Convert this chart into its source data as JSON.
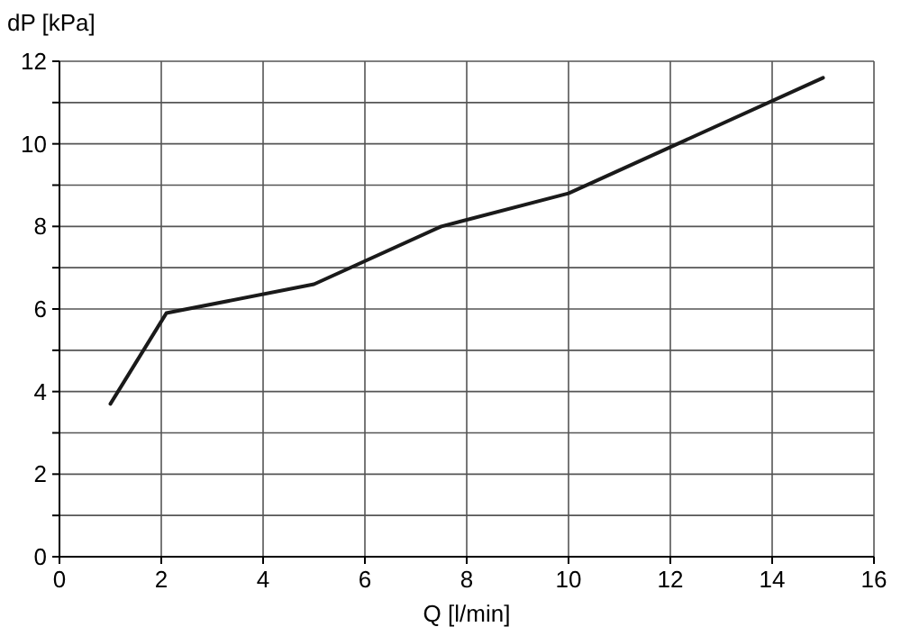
{
  "chart_data": {
    "type": "line",
    "xlabel": "Q [l/min]",
    "ylabel": "dP [kPa]",
    "x": [
      1,
      2.1,
      5,
      7.5,
      10,
      15
    ],
    "series": [
      {
        "color": "#1a1a1a",
        "values": [
          3.7,
          5.9,
          6.6,
          8.0,
          8.8,
          11.6
        ]
      }
    ],
    "xlim": [
      0,
      16
    ],
    "xticks": [
      0,
      2,
      4,
      6,
      8,
      10,
      12,
      14,
      16
    ],
    "ylim": [
      0,
      12
    ],
    "yticks": [
      0,
      {
        "value": 1,
        "label": null
      },
      2,
      {
        "value": 3,
        "label": null
      },
      4,
      {
        "value": 5,
        "label": null
      },
      6,
      {
        "value": 7,
        "label": null
      },
      8,
      {
        "value": 9,
        "label": null
      },
      10,
      {
        "value": 11,
        "label": null
      },
      12
    ],
    "grid": true,
    "marker": "none",
    "line_style": "solid"
  }
}
